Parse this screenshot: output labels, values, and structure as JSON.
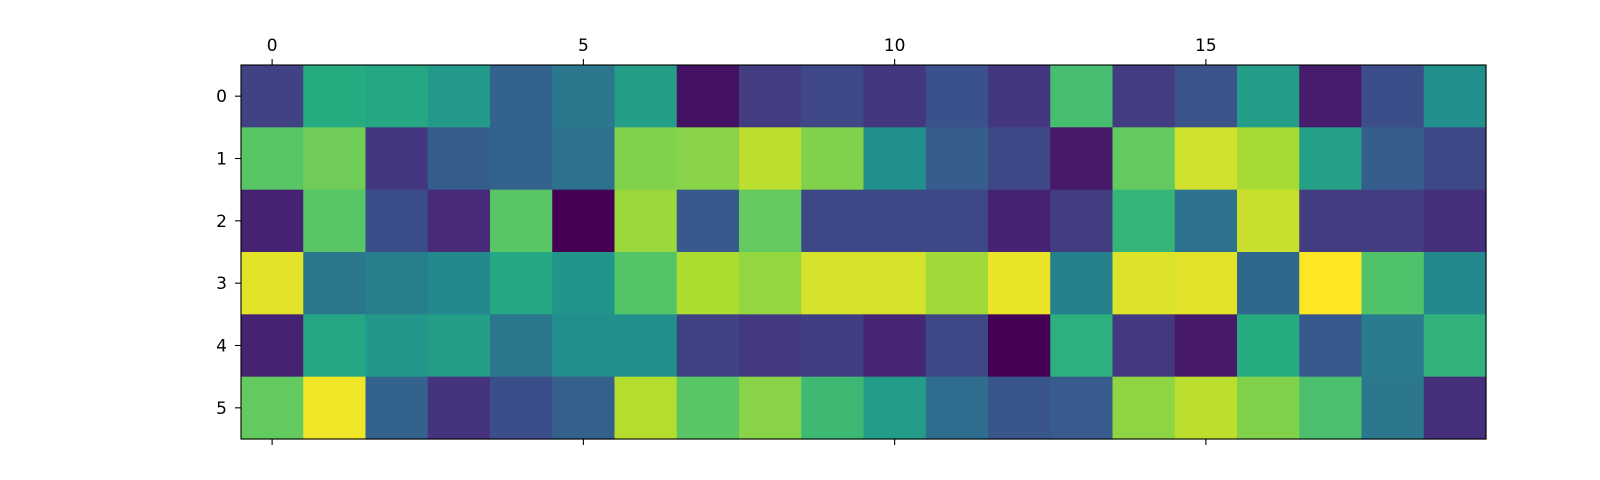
{
  "chart_data": {
    "type": "heatmap",
    "colormap": "viridis",
    "rows": 6,
    "cols": 20,
    "x_ticks": [
      0,
      5,
      10,
      15
    ],
    "y_ticks": [
      0,
      1,
      2,
      3,
      4,
      5
    ],
    "x_tick_labels": [
      "0",
      "5",
      "10",
      "15"
    ],
    "y_tick_labels": [
      "0",
      "1",
      "2",
      "3",
      "4",
      "5"
    ],
    "x_tick_positions": "top and bottom, labels on top",
    "grid": false,
    "value_range": [
      0,
      1
    ],
    "values": [
      [
        0.2,
        0.62,
        0.6,
        0.54,
        0.32,
        0.4,
        0.56,
        0.05,
        0.18,
        0.22,
        0.16,
        0.25,
        0.16,
        0.7,
        0.18,
        0.26,
        0.55,
        0.08,
        0.24,
        0.5
      ],
      [
        0.74,
        0.78,
        0.16,
        0.3,
        0.32,
        0.38,
        0.81,
        0.82,
        0.9,
        0.81,
        0.5,
        0.3,
        0.22,
        0.07,
        0.76,
        0.93,
        0.87,
        0.57,
        0.3,
        0.22
      ],
      [
        0.1,
        0.74,
        0.24,
        0.12,
        0.74,
        0.0,
        0.85,
        0.28,
        0.76,
        0.22,
        0.22,
        0.22,
        0.1,
        0.18,
        0.66,
        0.38,
        0.92,
        0.18,
        0.18,
        0.14
      ],
      [
        0.96,
        0.4,
        0.43,
        0.47,
        0.6,
        0.52,
        0.73,
        0.88,
        0.84,
        0.94,
        0.94,
        0.86,
        0.97,
        0.44,
        0.95,
        0.96,
        0.34,
        1.0,
        0.72,
        0.47
      ],
      [
        0.1,
        0.6,
        0.53,
        0.56,
        0.4,
        0.5,
        0.5,
        0.2,
        0.17,
        0.19,
        0.11,
        0.22,
        0.0,
        0.64,
        0.17,
        0.07,
        0.62,
        0.28,
        0.42,
        0.65
      ],
      [
        0.76,
        0.98,
        0.32,
        0.15,
        0.24,
        0.31,
        0.89,
        0.74,
        0.82,
        0.68,
        0.55,
        0.36,
        0.27,
        0.29,
        0.83,
        0.9,
        0.81,
        0.71,
        0.4,
        0.14
      ]
    ]
  }
}
